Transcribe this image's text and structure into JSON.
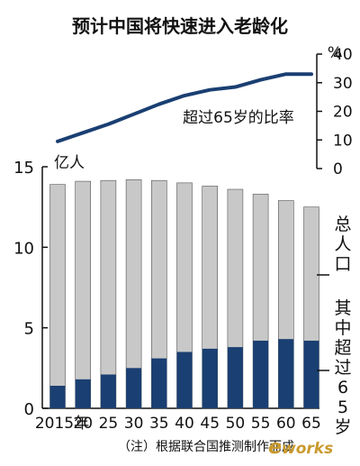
{
  "chart_data": {
    "type": "bar",
    "title": "预计中国将快速进入老龄化",
    "categories": [
      "2015年",
      "20",
      "25",
      "30",
      "35",
      "40",
      "45",
      "50",
      "55",
      "60",
      "65"
    ],
    "left_axis_unit": "亿人",
    "left_ylim": [
      0,
      15
    ],
    "left_ticks": [
      "0",
      "5",
      "10",
      "15"
    ],
    "series": [
      {
        "name": "总人口",
        "color": "#c8c8c8",
        "values": [
          13.9,
          14.1,
          14.15,
          14.2,
          14.15,
          14.0,
          13.8,
          13.6,
          13.3,
          12.9,
          12.5
        ]
      },
      {
        "name": "其中超过65岁",
        "color": "#1a3f72",
        "values": [
          1.4,
          1.8,
          2.1,
          2.5,
          3.1,
          3.5,
          3.7,
          3.8,
          4.2,
          4.3,
          4.2
        ]
      }
    ],
    "line": {
      "name": "超过65岁的比率",
      "color": "#1a3f72",
      "unit": "%",
      "ylim": [
        0,
        40
      ],
      "ticks": [
        "0",
        "10",
        "20",
        "30",
        "40"
      ],
      "values": [
        9.5,
        12.5,
        15.5,
        19.0,
        22.5,
        25.5,
        27.5,
        28.5,
        31.0,
        33.0,
        33.0
      ]
    },
    "note": "（注）根据联合国推测制作而成"
  },
  "watermark": {
    "text_e": "e",
    "text_works": "works",
    "color": "#c99a2e"
  }
}
